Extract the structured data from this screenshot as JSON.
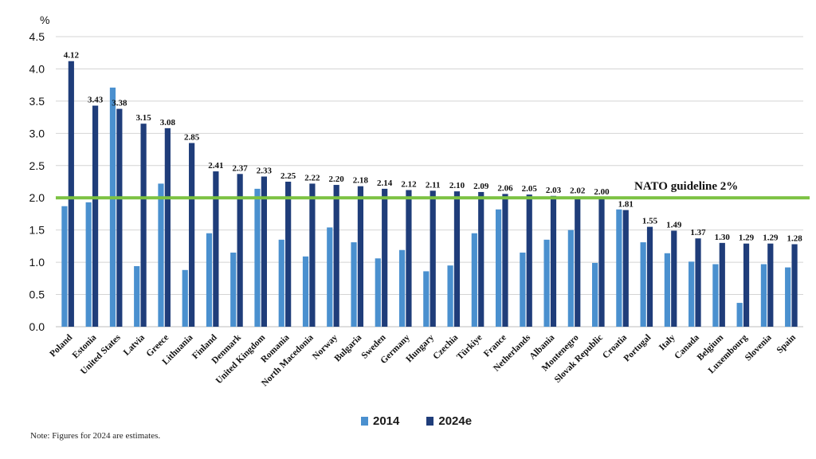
{
  "chart_data": {
    "type": "bar",
    "y_unit_label": "%",
    "ylim": [
      0,
      4.5
    ],
    "yticks": [
      "0.0",
      "0.5",
      "1.0",
      "1.5",
      "2.0",
      "2.5",
      "3.0",
      "3.5",
      "4.0",
      "4.5"
    ],
    "grid": true,
    "categories": [
      "Poland",
      "Estonia",
      "United States",
      "Latvia",
      "Greece",
      "Lithuania",
      "Finland",
      "Denmark",
      "United Kingdom",
      "Romania",
      "North Macedonia",
      "Norway",
      "Bulgaria",
      "Sweden",
      "Germany",
      "Hungary",
      "Czechia",
      "Türkiye",
      "France",
      "Netherlands",
      "Albania",
      "Montenegro",
      "Slovak Republic",
      "Croatia",
      "Portugal",
      "Italy",
      "Canada",
      "Belgium",
      "Luxembourg",
      "Slovenia",
      "Spain"
    ],
    "series": [
      {
        "name": "2014",
        "color": "#4a90cf",
        "values": [
          1.87,
          1.93,
          3.71,
          0.94,
          2.22,
          0.88,
          1.45,
          1.15,
          2.14,
          1.35,
          1.09,
          1.54,
          1.31,
          1.06,
          1.19,
          0.86,
          0.95,
          1.45,
          1.82,
          1.15,
          1.35,
          1.5,
          0.99,
          1.82,
          1.31,
          1.14,
          1.01,
          0.97,
          0.37,
          0.97,
          0.92
        ]
      },
      {
        "name": "2024e",
        "color": "#1f3d7a",
        "values": [
          4.12,
          3.43,
          3.38,
          3.15,
          3.08,
          2.85,
          2.41,
          2.37,
          2.33,
          2.25,
          2.22,
          2.2,
          2.18,
          2.14,
          2.12,
          2.11,
          2.1,
          2.09,
          2.06,
          2.05,
          2.03,
          2.02,
          2.0,
          1.81,
          1.55,
          1.49,
          1.37,
          1.3,
          1.29,
          1.29,
          1.28
        ],
        "data_labels": [
          "4.12",
          "3.43",
          "3.38",
          "3.15",
          "3.08",
          "2.85",
          "2.41",
          "2.37",
          "2.33",
          "2.25",
          "2.22",
          "2.20",
          "2.18",
          "2.14",
          "2.12",
          "2.11",
          "2.10",
          "2.09",
          "2.06",
          "2.05",
          "2.03",
          "2.02",
          "2.00",
          "1.81",
          "1.55",
          "1.49",
          "1.37",
          "1.30",
          "1.29",
          "1.29",
          "1.28"
        ]
      }
    ],
    "reference_line": {
      "value": 2.0,
      "label": "NATO guideline 2%",
      "color": "#7cc242"
    },
    "legend_position": "bottom-center",
    "note": "Note: Figures for 2024 are estimates."
  }
}
